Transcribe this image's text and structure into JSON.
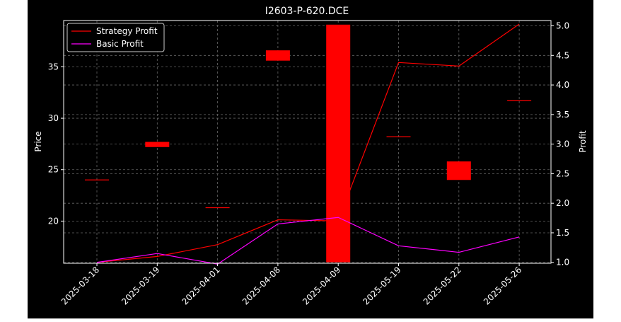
{
  "chart_data": {
    "type": "line",
    "title": "I2603-P-620.DCE",
    "ylabel_left": "Price",
    "ylabel_right": "Profit",
    "categories": [
      "2025-03-18",
      "2025-03-19",
      "2025-04-01",
      "2025-04-08",
      "2025-04-09",
      "2025-05-19",
      "2025-05-22",
      "2025-05-26"
    ],
    "left_axis": {
      "ylim": [
        15.9,
        39.5
      ],
      "ticks": [
        20,
        25,
        30,
        35
      ]
    },
    "right_axis": {
      "ylim": [
        0.985,
        5.09
      ],
      "ticks": [
        1.0,
        1.5,
        2.0,
        2.5,
        3.0,
        3.5,
        4.0,
        4.5,
        5.0
      ]
    },
    "candles": [
      {
        "open": 24.0,
        "close": 24.0,
        "color": "#ff0000"
      },
      {
        "open": 27.7,
        "close": 27.2,
        "color": "#ff0000"
      },
      {
        "open": 21.3,
        "close": 21.3,
        "color": "#ff0000"
      },
      {
        "open": 36.6,
        "close": 35.6,
        "color": "#ff0000"
      },
      {
        "open": 39.1,
        "close": 16.0,
        "color": "#ff0000"
      },
      {
        "open": 28.2,
        "close": 28.2,
        "color": "#ff0000"
      },
      {
        "open": 25.8,
        "close": 24.0,
        "color": "#ff0000"
      },
      {
        "open": 31.7,
        "close": 31.7,
        "color": "#ff0000"
      }
    ],
    "series": [
      {
        "name": "Strategy Profit",
        "color": "#ff0000",
        "axis": "right",
        "values": [
          1.0,
          1.1,
          1.3,
          1.72,
          1.7,
          4.38,
          4.32,
          5.03
        ]
      },
      {
        "name": "Basic Profit",
        "color": "#ff00ff",
        "axis": "right",
        "values": [
          1.0,
          1.15,
          0.97,
          1.65,
          1.76,
          1.28,
          1.17,
          1.43
        ]
      }
    ],
    "grid": true,
    "legend": "top-left",
    "colors": {
      "figure_bg": "#000000",
      "axes_bg": "#000000",
      "foreground": "#ffffff",
      "grid": "#666666",
      "page_bg": "#ffffff"
    }
  }
}
